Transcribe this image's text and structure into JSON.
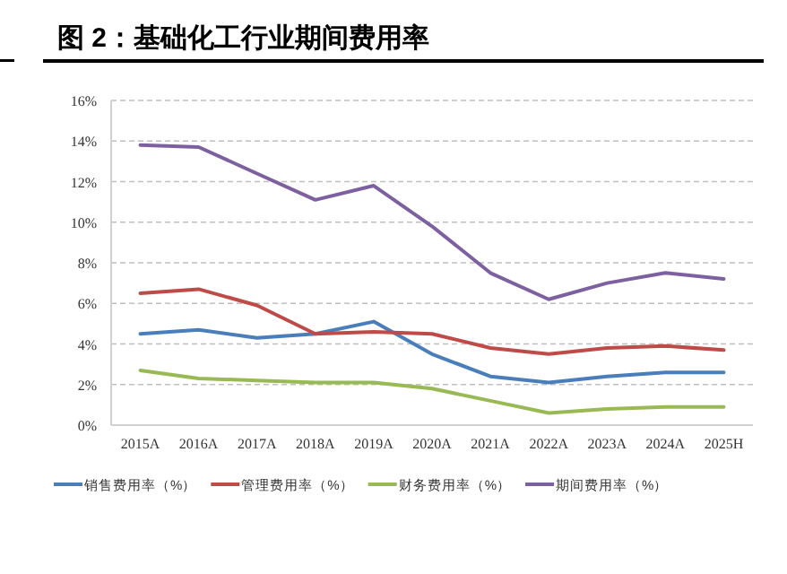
{
  "chart_data": {
    "type": "line",
    "title": "图 2：基础化工行业期间费用率",
    "categories": [
      "2015A",
      "2016A",
      "2017A",
      "2018A",
      "2019A",
      "2020A",
      "2021A",
      "2022A",
      "2023A",
      "2024A",
      "2025H"
    ],
    "series": [
      {
        "name": "销售费用率（%）",
        "color": "#4a7ebb",
        "values": [
          4.5,
          4.7,
          4.3,
          4.5,
          5.1,
          3.5,
          2.4,
          2.1,
          2.4,
          2.6,
          2.6
        ]
      },
      {
        "name": "管理费用率（%）",
        "color": "#be4b48",
        "values": [
          6.5,
          6.7,
          5.9,
          4.5,
          4.6,
          4.5,
          3.8,
          3.5,
          3.8,
          3.9,
          3.7
        ]
      },
      {
        "name": "财务费用率（%）",
        "color": "#98b954",
        "values": [
          2.7,
          2.3,
          2.2,
          2.1,
          2.1,
          1.8,
          1.2,
          0.6,
          0.8,
          0.9,
          0.9
        ]
      },
      {
        "name": "期间费用率（%）",
        "color": "#7d60a0",
        "values": [
          13.8,
          13.7,
          12.4,
          11.1,
          11.8,
          9.8,
          7.5,
          6.2,
          7.0,
          7.5,
          7.2
        ]
      }
    ],
    "ylim": [
      0,
      16
    ],
    "yticks": [
      {
        "value": 0,
        "label": "0%"
      },
      {
        "value": 2,
        "label": "2%"
      },
      {
        "value": 4,
        "label": "4%"
      },
      {
        "value": 6,
        "label": "6%"
      },
      {
        "value": 8,
        "label": "8%"
      },
      {
        "value": 10,
        "label": "10%"
      },
      {
        "value": 12,
        "label": "12%"
      },
      {
        "value": 14,
        "label": "14%"
      },
      {
        "value": 16,
        "label": "16%"
      }
    ],
    "grid": "y",
    "legend": "bottom"
  }
}
